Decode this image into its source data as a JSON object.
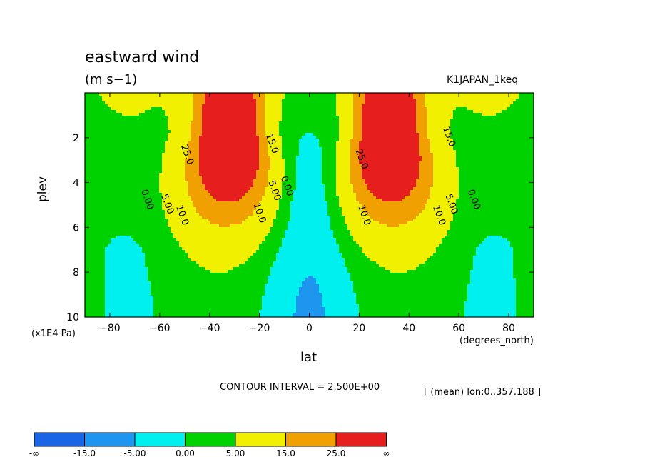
{
  "title": "eastward wind",
  "units": "(m s−1)",
  "experiment": "K1JAPAN_1keq",
  "y_axis": {
    "label": "plev",
    "unit": "(x1E4 Pa)"
  },
  "x_axis": {
    "label": "lat",
    "unit": "(degrees_north)"
  },
  "contour_interval_text": "CONTOUR INTERVAL = 2.500E+00",
  "mean_note": "[ (mean) lon:0..357.188 ]",
  "colorbar": {
    "labels": [
      "-∞",
      "-15.0",
      "-5.00",
      "0.00",
      "5.00",
      "15.0",
      "25.0",
      "∞"
    ],
    "colors": [
      "#1a64e6",
      "#1e96f0",
      "#00f0f0",
      "#00d200",
      "#f0f000",
      "#f0a000",
      "#e61e1e"
    ]
  },
  "chart_data": {
    "type": "contour",
    "xlim": [
      -90,
      90
    ],
    "ylim": [
      10,
      0
    ],
    "x_ticks": [
      -80,
      -60,
      -40,
      -20,
      0,
      20,
      40,
      60,
      80
    ],
    "x_tick_labels": [
      "−80",
      "−60",
      "−40",
      "−20",
      "0",
      "20",
      "40",
      "60",
      "80"
    ],
    "y_ticks": [
      2,
      4,
      6,
      8,
      10
    ],
    "y_tick_labels": [
      "2",
      "4",
      "6",
      "8",
      "10"
    ],
    "contour_interval": 2.5,
    "levels": [
      -15,
      -5,
      0,
      5,
      15,
      25
    ],
    "contour_labels": [
      {
        "text": "0.00",
        "lat": -66,
        "plev": 4.8
      },
      {
        "text": "5.00",
        "lat": -58,
        "plev": 5.0
      },
      {
        "text": "10.0",
        "lat": -52,
        "plev": 5.5
      },
      {
        "text": "25.0",
        "lat": -50,
        "plev": 2.8
      },
      {
        "text": "15.0",
        "lat": -16,
        "plev": 2.3
      },
      {
        "text": "10.0",
        "lat": -21,
        "plev": 5.4
      },
      {
        "text": "5.00",
        "lat": -15,
        "plev": 4.4
      },
      {
        "text": "0.00",
        "lat": -10,
        "plev": 4.2
      },
      {
        "text": "25.0",
        "lat": 20,
        "plev": 3.0
      },
      {
        "text": "10.0",
        "lat": 21,
        "plev": 5.5
      },
      {
        "text": "10.0",
        "lat": 51,
        "plev": 5.5
      },
      {
        "text": "5.00",
        "lat": 56,
        "plev": 5.0
      },
      {
        "text": "0.00",
        "lat": 65,
        "plev": 4.8
      },
      {
        "text": "15.0",
        "lat": 55,
        "plev": 2.0
      }
    ],
    "jets": [
      {
        "name": "",
        "lat": -32,
        "plev": 1.7
      },
      {
        "name": "",
        "lat": 32,
        "plev": 1.7
      }
    ]
  }
}
